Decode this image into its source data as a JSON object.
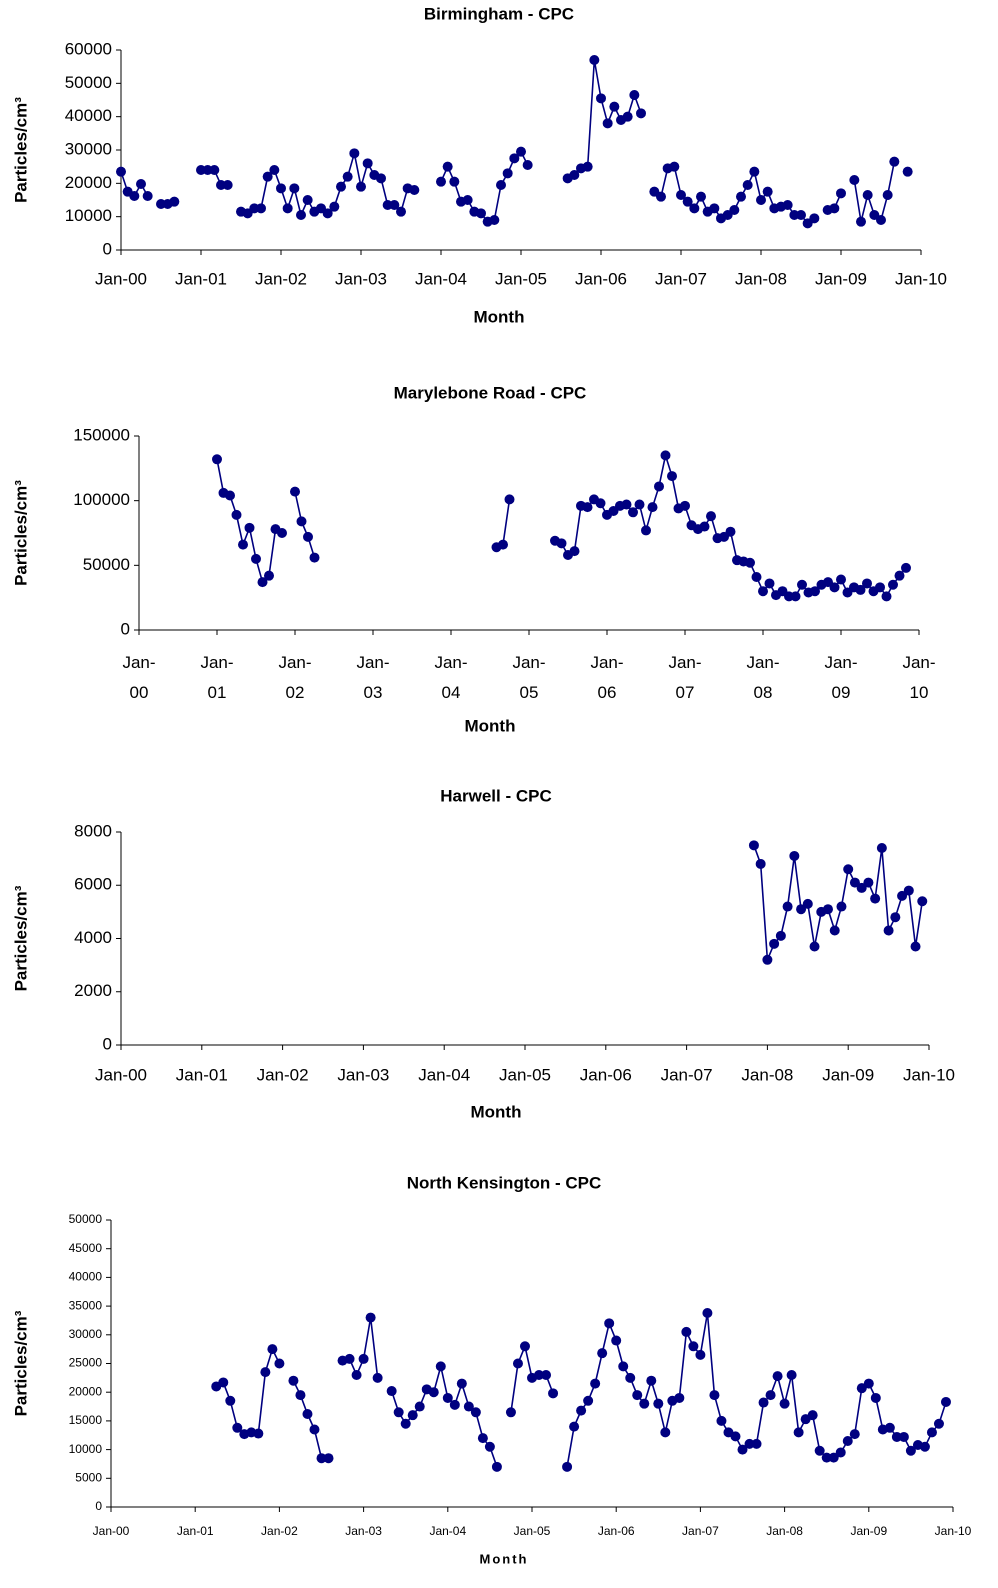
{
  "chart_data": [
    {
      "type": "line",
      "title": "Birmingham - CPC",
      "x_label": "Month",
      "y_label": "Particles/cm³",
      "color": "#000080",
      "marker": "circle",
      "grid": false,
      "xlim": [
        0,
        120
      ],
      "xticks": [
        {
          "value": 0,
          "label": "Jan-00"
        },
        {
          "value": 12,
          "label": "Jan-01"
        },
        {
          "value": 24,
          "label": "Jan-02"
        },
        {
          "value": 36,
          "label": "Jan-03"
        },
        {
          "value": 48,
          "label": "Jan-04"
        },
        {
          "value": 60,
          "label": "Jan-05"
        },
        {
          "value": 72,
          "label": "Jan-06"
        },
        {
          "value": 84,
          "label": "Jan-07"
        },
        {
          "value": 96,
          "label": "Jan-08"
        },
        {
          "value": 108,
          "label": "Jan-09"
        },
        {
          "value": 120,
          "label": "Jan-10"
        }
      ],
      "ylim": [
        0,
        60000
      ],
      "yticks": [
        0,
        10000,
        20000,
        30000,
        40000,
        50000,
        60000
      ],
      "x": [
        0,
        1,
        2,
        3,
        4,
        5,
        6,
        7,
        8,
        9,
        10,
        11,
        12,
        13,
        14,
        15,
        16,
        17,
        18,
        19,
        20,
        21,
        22,
        23,
        24,
        25,
        26,
        27,
        28,
        29,
        30,
        31,
        32,
        33,
        34,
        35,
        36,
        37,
        38,
        39,
        40,
        41,
        42,
        43,
        44,
        45,
        46,
        47,
        48,
        49,
        50,
        51,
        52,
        53,
        54,
        55,
        56,
        57,
        58,
        59,
        60,
        61,
        62,
        63,
        64,
        65,
        66,
        67,
        68,
        69,
        70,
        71,
        72,
        73,
        74,
        75,
        76,
        77,
        78,
        79,
        80,
        81,
        82,
        83,
        84,
        85,
        86,
        87,
        88,
        89,
        90,
        91,
        92,
        93,
        94,
        95,
        96,
        97,
        98,
        99,
        100,
        101,
        102,
        103,
        104,
        105,
        106,
        107,
        108,
        109,
        110,
        111,
        112,
        113,
        114,
        115,
        116,
        117,
        118
      ],
      "values": [
        23500,
        17500,
        16200,
        19800,
        16200,
        null,
        13800,
        13800,
        14500,
        null,
        null,
        null,
        24000,
        24000,
        24000,
        19500,
        19500,
        null,
        11500,
        11000,
        12500,
        12500,
        22000,
        24000,
        18500,
        12500,
        18500,
        10500,
        15000,
        11500,
        12500,
        11000,
        13000,
        19000,
        22000,
        29000,
        19000,
        26000,
        22500,
        21500,
        13500,
        13500,
        11500,
        18500,
        18000,
        null,
        null,
        null,
        20500,
        25000,
        20500,
        14500,
        15000,
        11500,
        11000,
        8500,
        9000,
        19500,
        23000,
        27500,
        29500,
        25500,
        null,
        null,
        null,
        null,
        null,
        21500,
        22500,
        24500,
        25000,
        57000,
        45500,
        38000,
        43000,
        39000,
        40000,
        46500,
        41000,
        null,
        17500,
        16000,
        24500,
        25000,
        16500,
        14500,
        12500,
        16000,
        11500,
        12500,
        9500,
        10500,
        12000,
        16000,
        19500,
        23500,
        15000,
        17500,
        12500,
        13000,
        13500,
        10500,
        10500,
        8000,
        9500,
        null,
        12000,
        12500,
        17000,
        null,
        21000,
        8500,
        16500,
        10500,
        9000,
        16500,
        26500,
        null,
        23500
      ]
    },
    {
      "type": "line",
      "title": "Marylebone Road - CPC",
      "x_label": "Month",
      "y_label": "Particles/cm³",
      "color": "#000080",
      "marker": "circle",
      "grid": false,
      "tick_label_wrap": true,
      "xlim": [
        0,
        120
      ],
      "xticks": [
        {
          "value": 0,
          "label": "Jan-00"
        },
        {
          "value": 12,
          "label": "Jan-01"
        },
        {
          "value": 24,
          "label": "Jan-02"
        },
        {
          "value": 36,
          "label": "Jan-03"
        },
        {
          "value": 48,
          "label": "Jan-04"
        },
        {
          "value": 60,
          "label": "Jan-05"
        },
        {
          "value": 72,
          "label": "Jan-06"
        },
        {
          "value": 84,
          "label": "Jan-07"
        },
        {
          "value": 96,
          "label": "Jan-08"
        },
        {
          "value": 108,
          "label": "Jan-09"
        },
        {
          "value": 120,
          "label": "Jan-10"
        }
      ],
      "ylim": [
        0,
        150000
      ],
      "yticks": [
        0,
        50000,
        100000,
        150000
      ],
      "x": [
        12,
        13,
        14,
        15,
        16,
        17,
        18,
        19,
        20,
        21,
        22,
        23,
        24,
        25,
        26,
        27,
        28,
        29,
        30,
        31,
        32,
        33,
        34,
        35,
        36,
        37,
        38,
        39,
        40,
        41,
        42,
        43,
        44,
        45,
        46,
        47,
        48,
        49,
        50,
        51,
        52,
        53,
        54,
        55,
        56,
        57,
        58,
        59,
        60,
        61,
        62,
        63,
        64,
        65,
        66,
        67,
        68,
        69,
        70,
        71,
        72,
        73,
        74,
        75,
        76,
        77,
        78,
        79,
        80,
        81,
        82,
        83,
        84,
        85,
        86,
        87,
        88,
        89,
        90,
        91,
        92,
        93,
        94,
        95,
        96,
        97,
        98,
        99,
        100,
        101,
        102,
        103,
        104,
        105,
        106,
        107,
        108,
        109,
        110,
        111,
        112,
        113,
        114,
        115,
        116,
        117,
        118
      ],
      "values": [
        132000,
        106000,
        104000,
        89000,
        66000,
        79000,
        55000,
        37000,
        42000,
        78000,
        75000,
        null,
        107000,
        84000,
        72000,
        56000,
        null,
        null,
        null,
        null,
        null,
        null,
        null,
        null,
        null,
        null,
        null,
        null,
        null,
        null,
        null,
        null,
        null,
        null,
        null,
        null,
        null,
        null,
        null,
        null,
        null,
        null,
        null,
        64000,
        66000,
        101000,
        null,
        null,
        null,
        null,
        null,
        null,
        69000,
        67000,
        58000,
        61000,
        96000,
        95000,
        101000,
        98000,
        89000,
        92000,
        96000,
        97000,
        91000,
        97000,
        77000,
        95000,
        111000,
        135000,
        119000,
        94000,
        96000,
        81000,
        78000,
        80000,
        88000,
        71000,
        72000,
        76000,
        54000,
        53000,
        52000,
        41000,
        30000,
        36000,
        27000,
        30000,
        26000,
        26000,
        35000,
        29000,
        30000,
        35000,
        37000,
        33000,
        39000,
        29000,
        33000,
        31000,
        36000,
        30000,
        33000,
        26000,
        35000,
        42000,
        48000
      ]
    },
    {
      "type": "line",
      "title": "Harwell - CPC",
      "x_label": "Month",
      "y_label": "Particles/cm³",
      "color": "#000080",
      "marker": "circle",
      "grid": false,
      "xlim": [
        0,
        120
      ],
      "xticks": [
        {
          "value": 0,
          "label": "Jan-00"
        },
        {
          "value": 12,
          "label": "Jan-01"
        },
        {
          "value": 24,
          "label": "Jan-02"
        },
        {
          "value": 36,
          "label": "Jan-03"
        },
        {
          "value": 48,
          "label": "Jan-04"
        },
        {
          "value": 60,
          "label": "Jan-05"
        },
        {
          "value": 72,
          "label": "Jan-06"
        },
        {
          "value": 84,
          "label": "Jan-07"
        },
        {
          "value": 96,
          "label": "Jan-08"
        },
        {
          "value": 108,
          "label": "Jan-09"
        },
        {
          "value": 120,
          "label": "Jan-10"
        }
      ],
      "ylim": [
        0,
        8000
      ],
      "yticks": [
        0,
        2000,
        4000,
        6000,
        8000
      ],
      "x": [
        94,
        95,
        96,
        97,
        98,
        99,
        100,
        101,
        102,
        103,
        104,
        105,
        106,
        107,
        108,
        109,
        110,
        111,
        112,
        113,
        114,
        115,
        116,
        117,
        118,
        119
      ],
      "values": [
        7500,
        6800,
        3200,
        3800,
        4100,
        5200,
        7100,
        5100,
        5300,
        3700,
        5000,
        5100,
        4300,
        5200,
        6600,
        6100,
        5900,
        6100,
        5500,
        7400,
        4300,
        4800,
        5600,
        5800,
        3700,
        5400
      ]
    },
    {
      "type": "line",
      "title": "North Kensington - CPC",
      "x_label": "Month",
      "y_label": "Particles/cm³",
      "color": "#000080",
      "marker": "circle",
      "grid": false,
      "xlim": [
        0,
        120
      ],
      "xticks": [
        {
          "value": 0,
          "label": "Jan-00"
        },
        {
          "value": 12,
          "label": "Jan-01"
        },
        {
          "value": 24,
          "label": "Jan-02"
        },
        {
          "value": 36,
          "label": "Jan-03"
        },
        {
          "value": 48,
          "label": "Jan-04"
        },
        {
          "value": 60,
          "label": "Jan-05"
        },
        {
          "value": 72,
          "label": "Jan-06"
        },
        {
          "value": 84,
          "label": "Jan-07"
        },
        {
          "value": 96,
          "label": "Jan-08"
        },
        {
          "value": 108,
          "label": "Jan-09"
        },
        {
          "value": 120,
          "label": "Jan-10"
        }
      ],
      "ylim": [
        0,
        50000
      ],
      "yticks": [
        0,
        5000,
        10000,
        15000,
        20000,
        25000,
        30000,
        35000,
        40000,
        45000,
        50000
      ],
      "x": [
        15,
        16,
        17,
        18,
        19,
        20,
        21,
        22,
        23,
        24,
        25,
        26,
        27,
        28,
        29,
        30,
        31,
        32,
        33,
        34,
        35,
        36,
        37,
        38,
        39,
        40,
        41,
        42,
        43,
        44,
        45,
        46,
        47,
        48,
        49,
        50,
        51,
        52,
        53,
        54,
        55,
        56,
        57,
        58,
        59,
        60,
        61,
        62,
        63,
        64,
        65,
        66,
        67,
        68,
        69,
        70,
        71,
        72,
        73,
        74,
        75,
        76,
        77,
        78,
        79,
        80,
        81,
        82,
        83,
        84,
        85,
        86,
        87,
        88,
        89,
        90,
        91,
        92,
        93,
        94,
        95,
        96,
        97,
        98,
        99,
        100,
        101,
        102,
        103,
        104,
        105,
        106,
        107,
        108,
        109,
        110,
        111,
        112,
        113,
        114,
        115,
        116,
        117,
        118,
        119
      ],
      "values": [
        21000,
        21700,
        18500,
        13800,
        12700,
        13000,
        12800,
        23500,
        27500,
        25000,
        null,
        22000,
        19500,
        16200,
        13500,
        8500,
        8500,
        null,
        25500,
        25800,
        23000,
        25800,
        33000,
        22500,
        null,
        20200,
        16500,
        14500,
        16000,
        17500,
        20500,
        20000,
        24500,
        19000,
        17800,
        21500,
        17500,
        16500,
        12000,
        10500,
        7000,
        null,
        16500,
        25000,
        28000,
        22500,
        23000,
        23000,
        19800,
        null,
        7000,
        14000,
        16800,
        18500,
        21500,
        26800,
        32000,
        29000,
        24500,
        22500,
        19500,
        18000,
        22000,
        18000,
        13000,
        18500,
        19000,
        30500,
        28000,
        26500,
        33800,
        19500,
        15000,
        13000,
        12300,
        10000,
        11000,
        11000,
        18200,
        19500,
        22800,
        18000,
        23000,
        13000,
        15300,
        16000,
        9800,
        8600,
        8600,
        9500,
        11500,
        12700,
        20700,
        21500,
        19000,
        13500,
        13800,
        12200,
        12200,
        9800,
        10800,
        10500,
        13000,
        14500,
        18300
      ]
    }
  ]
}
